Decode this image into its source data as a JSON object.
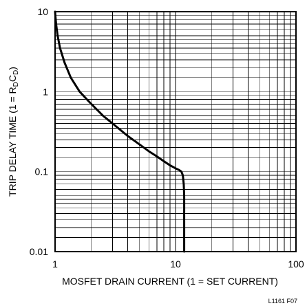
{
  "chart_data": {
    "type": "line",
    "title": "",
    "xlabel": "MOSFET DRAIN CURRENT (1 = SET CURRENT)",
    "ylabel_parts": {
      "main": "TRIP DELAY TIME (1 = R",
      "sub1": "D",
      "mid": "C",
      "sub2": "D",
      "end": ")"
    },
    "xscale": "log",
    "yscale": "log",
    "xlim": [
      1,
      100
    ],
    "ylim": [
      0.01,
      10
    ],
    "grid": true,
    "x_ticks": [
      {
        "value": 1,
        "label": "1"
      },
      {
        "value": 10,
        "label": "10"
      },
      {
        "value": 100,
        "label": "100"
      }
    ],
    "y_ticks": [
      {
        "value": 10,
        "label": "10"
      },
      {
        "value": 1,
        "label": "1"
      },
      {
        "value": 0.1,
        "label": "0.1"
      },
      {
        "value": 0.01,
        "label": "0.01"
      }
    ],
    "series": [
      {
        "x": [
          1.0,
          1.02,
          1.05,
          1.1,
          1.2,
          1.35,
          1.6,
          2.0,
          2.5,
          3.0,
          4.0,
          5.0,
          6.0,
          7.0,
          8.0,
          9.0,
          10.0,
          10.7,
          11.2,
          11.5,
          11.7,
          11.8,
          11.8,
          11.8
        ],
        "y": [
          10,
          7,
          5,
          3.5,
          2.3,
          1.5,
          1.0,
          0.7,
          0.5,
          0.4,
          0.28,
          0.22,
          0.18,
          0.155,
          0.135,
          0.12,
          0.11,
          0.105,
          0.1,
          0.09,
          0.07,
          0.05,
          0.02,
          0.01
        ]
      }
    ],
    "figure_code": "L1161 F07"
  }
}
